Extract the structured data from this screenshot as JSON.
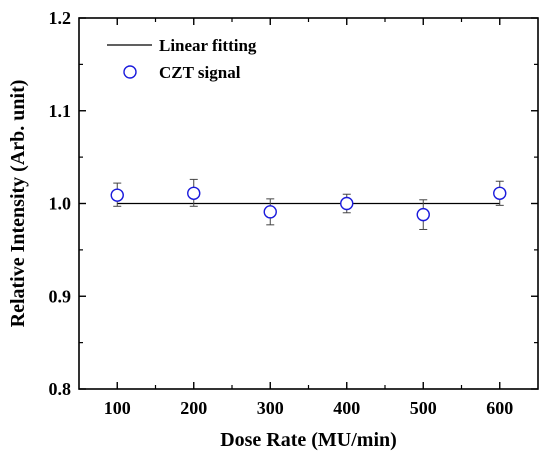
{
  "chart_data": {
    "type": "scatter",
    "xlabel": "Dose Rate (MU/min)",
    "ylabel": "Relative Intensity (Arb. unit)",
    "xlim": [
      50,
      650
    ],
    "ylim": [
      0.8,
      1.2
    ],
    "xticks": [
      100,
      200,
      300,
      400,
      500,
      600
    ],
    "yticks": [
      0.8,
      0.9,
      1.0,
      1.1,
      1.2
    ],
    "xtick_labels": [
      "100",
      "200",
      "300",
      "400",
      "500",
      "600"
    ],
    "ytick_labels": [
      "0.8",
      "0.9",
      "1.0",
      "1.1",
      "1.2"
    ],
    "grid": false,
    "legend": {
      "placement": "top-left",
      "entries": [
        "Linear fitting",
        "CZT signal"
      ]
    },
    "series": [
      {
        "name": "CZT signal",
        "kind": "scatter",
        "color": "#1a1adc",
        "x": [
          100,
          200,
          300,
          400,
          500,
          600
        ],
        "y": [
          1.009,
          1.011,
          0.991,
          1.0,
          0.988,
          1.011
        ],
        "err_low": [
          0.012,
          0.014,
          0.014,
          0.01,
          0.016,
          0.013
        ],
        "err_high": [
          0.013,
          0.015,
          0.014,
          0.01,
          0.016,
          0.013
        ]
      },
      {
        "name": "Linear fitting",
        "kind": "line",
        "color": "#000000",
        "x": [
          100,
          600
        ],
        "y": [
          1.0,
          1.0
        ]
      }
    ]
  }
}
